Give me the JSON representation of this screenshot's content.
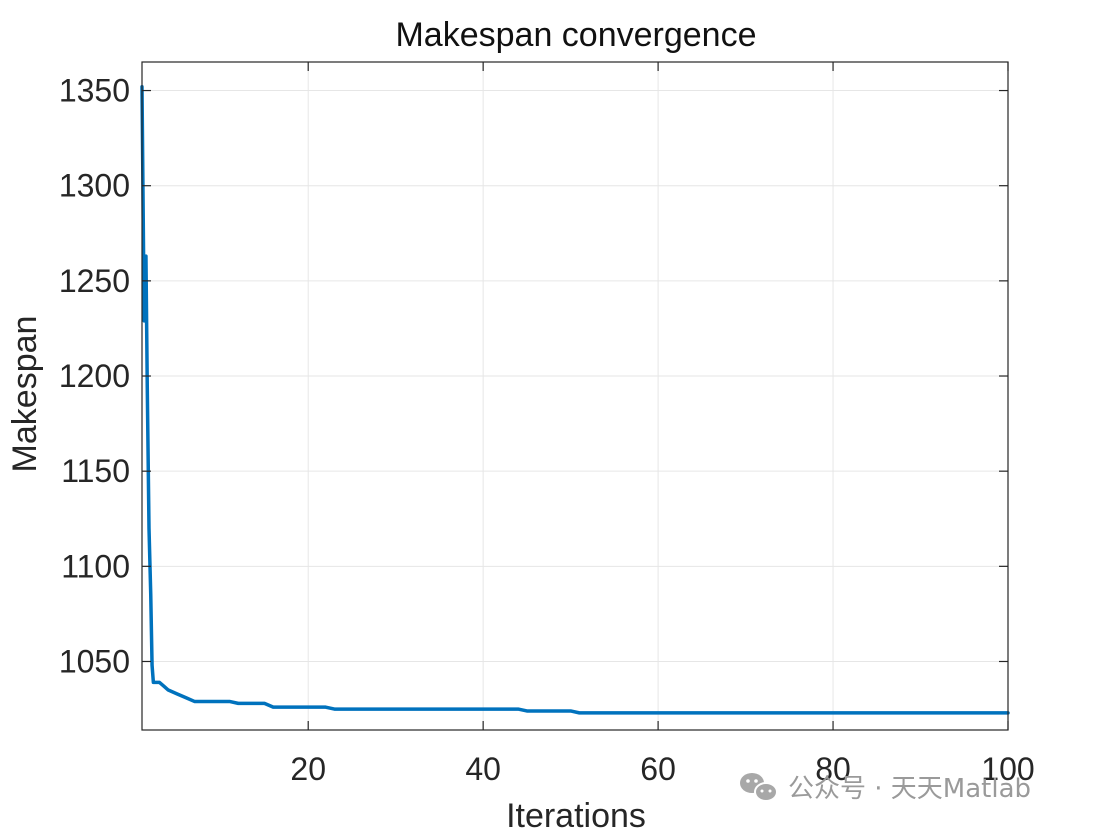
{
  "chart_data": {
    "type": "line",
    "title": "Makespan convergence",
    "xlabel": "Iterations",
    "ylabel": "Makespan",
    "xlim": [
      1,
      100
    ],
    "ylim": [
      1014,
      1365
    ],
    "xticks": [
      20,
      40,
      60,
      80,
      100
    ],
    "yticks": [
      1050,
      1100,
      1150,
      1200,
      1250,
      1300,
      1350
    ],
    "grid": true,
    "series": [
      {
        "color": "#0072BD",
        "x": [
          1,
          1.25,
          1.45,
          1.6,
          1.8,
          2,
          2.15,
          2.3,
          3,
          3.5,
          4,
          5,
          6,
          7,
          8,
          9,
          10,
          11,
          12,
          13,
          14,
          15,
          16,
          17,
          18,
          19,
          20,
          21,
          22,
          23,
          24,
          25,
          30,
          35,
          40,
          44,
          45,
          46,
          50,
          51,
          52,
          60,
          70,
          80,
          90,
          100
        ],
        "values": [
          1352,
          1229,
          1263,
          1195,
          1120,
          1085,
          1048,
          1039,
          1039,
          1037,
          1035,
          1033,
          1031,
          1029,
          1029,
          1029,
          1029,
          1029,
          1028,
          1028,
          1028,
          1028,
          1026,
          1026,
          1026,
          1026,
          1026,
          1026,
          1026,
          1025,
          1025,
          1025,
          1025,
          1025,
          1025,
          1025,
          1024,
          1024,
          1024,
          1023,
          1023,
          1023,
          1023,
          1023,
          1023,
          1023
        ]
      }
    ]
  },
  "watermark": {
    "icon": "wechat-icon",
    "text": "公众号 · 天天Matlab"
  }
}
